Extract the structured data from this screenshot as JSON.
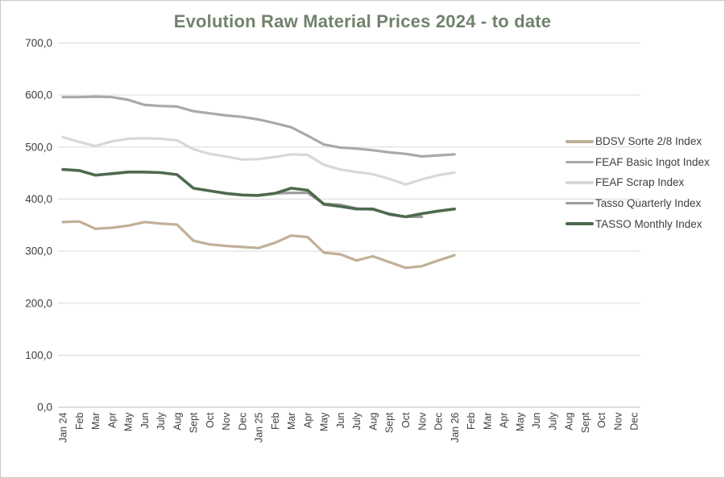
{
  "chart_data": {
    "type": "line",
    "title": "Evolution Raw Material Prices 2024 - to date",
    "title_color": "#70836C",
    "grid": "horizontal",
    "legend_position": "right",
    "decimal_format": "comma",
    "ylim": [
      0,
      700
    ],
    "ytick_step": 100,
    "ytick_labels": [
      "0,0",
      "100,0",
      "200,0",
      "300,0",
      "400,0",
      "500,0",
      "600,0",
      "700,0"
    ],
    "categories": [
      "Jan 24",
      "Feb",
      "Mar",
      "Apr",
      "May",
      "Jun",
      "July",
      "Aug",
      "Sept",
      "Oct",
      "Nov",
      "Dec",
      "Jan 25",
      "Feb",
      "Mar",
      "Apr",
      "May",
      "Jun",
      "July",
      "Aug",
      "Sept",
      "Oct",
      "Nov",
      "Dec",
      "Jan 26",
      "Feb",
      "Mar",
      "Apr",
      "May",
      "Jun",
      "July",
      "Aug",
      "Sept",
      "Oct",
      "Nov",
      "Dec"
    ],
    "series": [
      {
        "name": "BDSV Sorte 2/8 Index",
        "color": "#C0B096",
        "values": [
          356,
          357,
          343,
          345,
          349,
          356,
          353,
          351,
          320,
          313,
          310,
          308,
          306,
          316,
          330,
          327,
          297,
          294,
          282,
          290,
          279,
          268,
          271,
          282,
          292,
          null,
          null,
          null,
          null,
          null,
          null,
          null,
          null,
          null,
          null,
          null
        ]
      },
      {
        "name": "FEAF Basic Ingot Index",
        "color": "#A9A9A9",
        "values": [
          596,
          596,
          597,
          596,
          591,
          581,
          579,
          578,
          569,
          565,
          561,
          558,
          553,
          546,
          538,
          522,
          505,
          499,
          497,
          494,
          490,
          487,
          482,
          484,
          486,
          null,
          null,
          null,
          null,
          null,
          null,
          null,
          null,
          null,
          null,
          null
        ]
      },
      {
        "name": "FEAF Scrap Index",
        "color": "#D8D8D8",
        "values": [
          519,
          510,
          502,
          511,
          516,
          517,
          516,
          513,
          496,
          487,
          482,
          476,
          477,
          481,
          486,
          485,
          466,
          457,
          452,
          448,
          439,
          428,
          438,
          446,
          451,
          null,
          null,
          null,
          null,
          null,
          null,
          null,
          null,
          null,
          null,
          null
        ]
      },
      {
        "name": "Tasso Quarterly Index",
        "color": "#9C9C9C",
        "values": [
          null,
          null,
          null,
          null,
          null,
          null,
          null,
          null,
          null,
          null,
          null,
          null,
          408,
          411,
          412,
          412,
          391,
          389,
          382,
          380,
          372,
          366,
          366,
          null,
          null,
          null,
          null,
          null,
          null,
          null,
          null,
          null,
          null,
          null,
          null,
          null
        ]
      },
      {
        "name": "TASSO Monthly Index",
        "color": "#4F6A4F",
        "values": [
          457,
          455,
          446,
          449,
          452,
          452,
          451,
          447,
          421,
          416,
          411,
          408,
          407,
          411,
          421,
          417,
          390,
          386,
          381,
          381,
          371,
          366,
          372,
          377,
          381,
          null,
          null,
          null,
          null,
          null,
          null,
          null,
          null,
          null,
          null,
          null
        ]
      }
    ]
  }
}
